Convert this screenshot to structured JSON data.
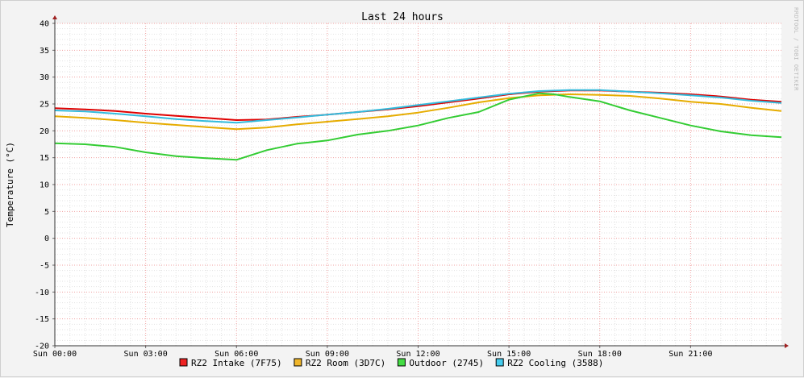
{
  "chart_data": {
    "type": "line",
    "title": "Last 24 hours",
    "ylabel": "Temperature (°C)",
    "watermark": "RRDTOOL / TOBI OETIKER",
    "ylim": [
      -20,
      40
    ],
    "yticks": [
      40,
      35,
      30,
      25,
      20,
      15,
      10,
      5,
      0,
      -5,
      -10,
      -15,
      -20
    ],
    "xlim": [
      0,
      24
    ],
    "xticks": [
      {
        "x": 0,
        "label": "Sun 00:00"
      },
      {
        "x": 3,
        "label": "Sun 03:00"
      },
      {
        "x": 6,
        "label": "Sun 06:00"
      },
      {
        "x": 9,
        "label": "Sun 09:00"
      },
      {
        "x": 12,
        "label": "Sun 12:00"
      },
      {
        "x": 15,
        "label": "Sun 15:00"
      },
      {
        "x": 18,
        "label": "Sun 18:00"
      },
      {
        "x": 21,
        "label": "Sun 21:00"
      }
    ],
    "grid": true,
    "legend_position": "bottom",
    "series": [
      {
        "name": "RZ2 Intake (7F75)",
        "color": "#e00000",
        "swatch": "#ee2222",
        "x": [
          0,
          1,
          2,
          3,
          4,
          5,
          6,
          7,
          8,
          9,
          10,
          11,
          12,
          13,
          14,
          15,
          16,
          17,
          18,
          19,
          20,
          21,
          22,
          23,
          24
        ],
        "y": [
          24.2,
          24.0,
          23.7,
          23.2,
          22.8,
          22.4,
          22.0,
          22.1,
          22.6,
          23.0,
          23.5,
          24.0,
          24.6,
          25.3,
          26.0,
          26.8,
          27.3,
          27.5,
          27.5,
          27.3,
          27.1,
          26.8,
          26.4,
          25.8,
          25.4
        ]
      },
      {
        "name": "RZ2 Room (3D7C)",
        "color": "#e6ac00",
        "swatch": "#f0b62a",
        "x": [
          0,
          1,
          2,
          3,
          4,
          5,
          6,
          7,
          8,
          9,
          10,
          11,
          12,
          13,
          14,
          15,
          16,
          17,
          18,
          19,
          20,
          21,
          22,
          23,
          24
        ],
        "y": [
          22.7,
          22.4,
          22.0,
          21.5,
          21.1,
          20.7,
          20.3,
          20.6,
          21.2,
          21.7,
          22.2,
          22.7,
          23.4,
          24.3,
          25.3,
          26.1,
          26.6,
          26.8,
          26.7,
          26.5,
          26.0,
          25.4,
          25.0,
          24.3,
          23.7
        ]
      },
      {
        "name": "Outdoor (2745)",
        "color": "#33cc33",
        "swatch": "#44dd44",
        "x": [
          0,
          1,
          2,
          3,
          4,
          5,
          6,
          6.5,
          7,
          8,
          9,
          10,
          11,
          12,
          13,
          14,
          15,
          16,
          16.5,
          17,
          18,
          19,
          20,
          21,
          22,
          23,
          24
        ],
        "y": [
          17.7,
          17.5,
          17.0,
          16.0,
          15.3,
          14.9,
          14.6,
          15.5,
          16.4,
          17.6,
          18.2,
          19.3,
          20.0,
          21.0,
          22.4,
          23.5,
          25.8,
          27.0,
          26.8,
          26.3,
          25.5,
          23.8,
          22.4,
          21.0,
          19.9,
          19.2,
          18.8
        ]
      },
      {
        "name": "RZ2 Cooling (3588)",
        "color": "#33bbdd",
        "swatch": "#44ccee",
        "x": [
          0,
          1,
          2,
          3,
          4,
          5,
          6,
          7,
          8,
          9,
          10,
          11,
          12,
          13,
          14,
          15,
          16,
          17,
          18,
          19,
          20,
          21,
          22,
          23,
          24
        ],
        "y": [
          23.8,
          23.6,
          23.2,
          22.7,
          22.2,
          21.8,
          21.5,
          22.0,
          22.5,
          23.0,
          23.5,
          24.1,
          24.8,
          25.5,
          26.2,
          26.9,
          27.4,
          27.6,
          27.6,
          27.3,
          27.0,
          26.6,
          26.2,
          25.6,
          25.2
        ]
      }
    ]
  }
}
